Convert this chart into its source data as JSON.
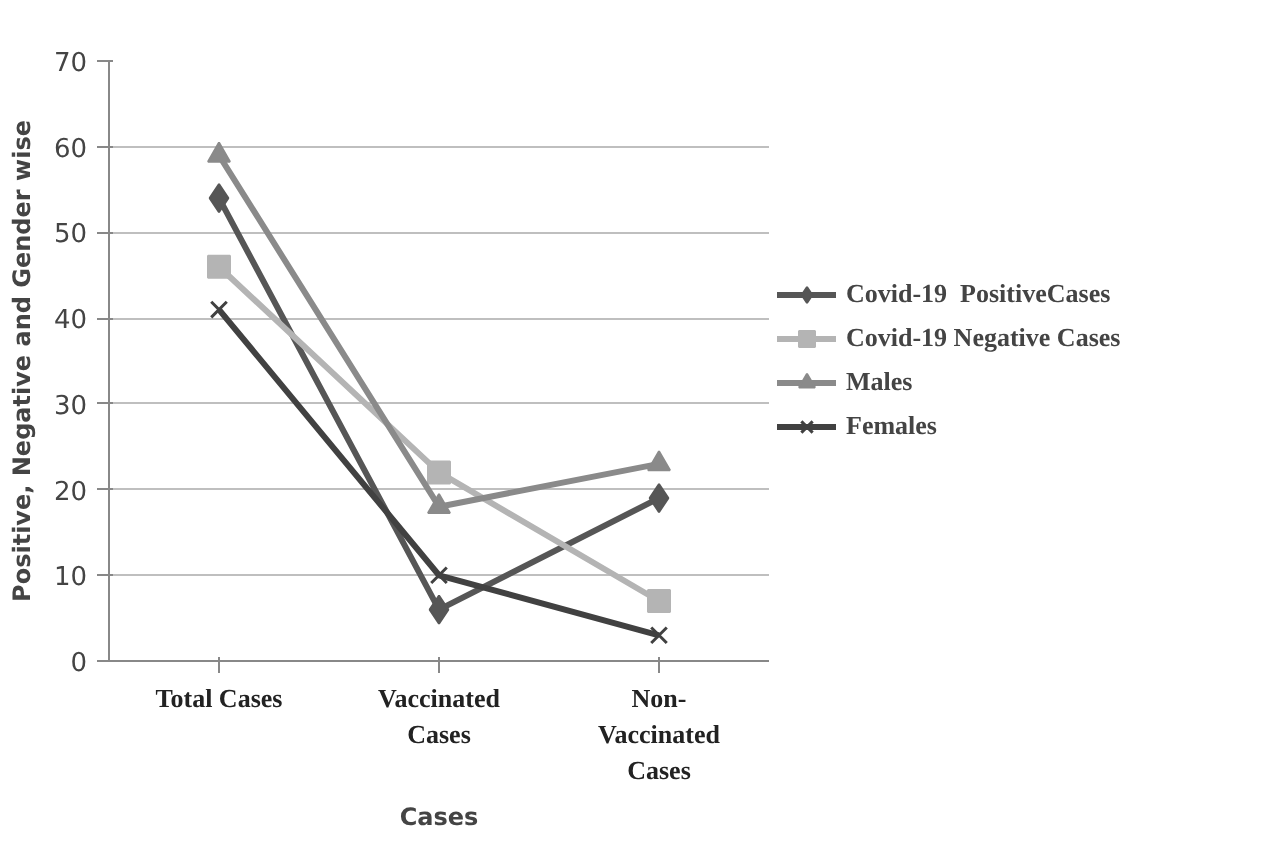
{
  "chart_data": {
    "type": "line",
    "xlabel": "Cases",
    "ylabel": "Positive, Negative and Gender wise",
    "categories": [
      "Total Cases",
      "Vaccinated Cases",
      "Non-Vaccinated Cases"
    ],
    "ylim": [
      0,
      70
    ],
    "yticks": [
      0,
      10,
      20,
      30,
      40,
      50,
      60,
      70
    ],
    "grid": "y",
    "legend": "right",
    "line_style": "solid",
    "series": [
      {
        "name": "Covid-19  PositiveCases",
        "color": "#565656",
        "marker": "diamond",
        "values": [
          54,
          6,
          19
        ]
      },
      {
        "name": "Covid-19 Negative Cases",
        "color": "#b4b4b4",
        "marker": "square",
        "values": [
          46,
          22,
          7
        ]
      },
      {
        "name": "Males",
        "color": "#8a8a8a",
        "marker": "triangle",
        "values": [
          59,
          18,
          23
        ]
      },
      {
        "name": "Females",
        "color": "#414141",
        "marker": "cross",
        "values": [
          41,
          10,
          3
        ]
      }
    ]
  }
}
